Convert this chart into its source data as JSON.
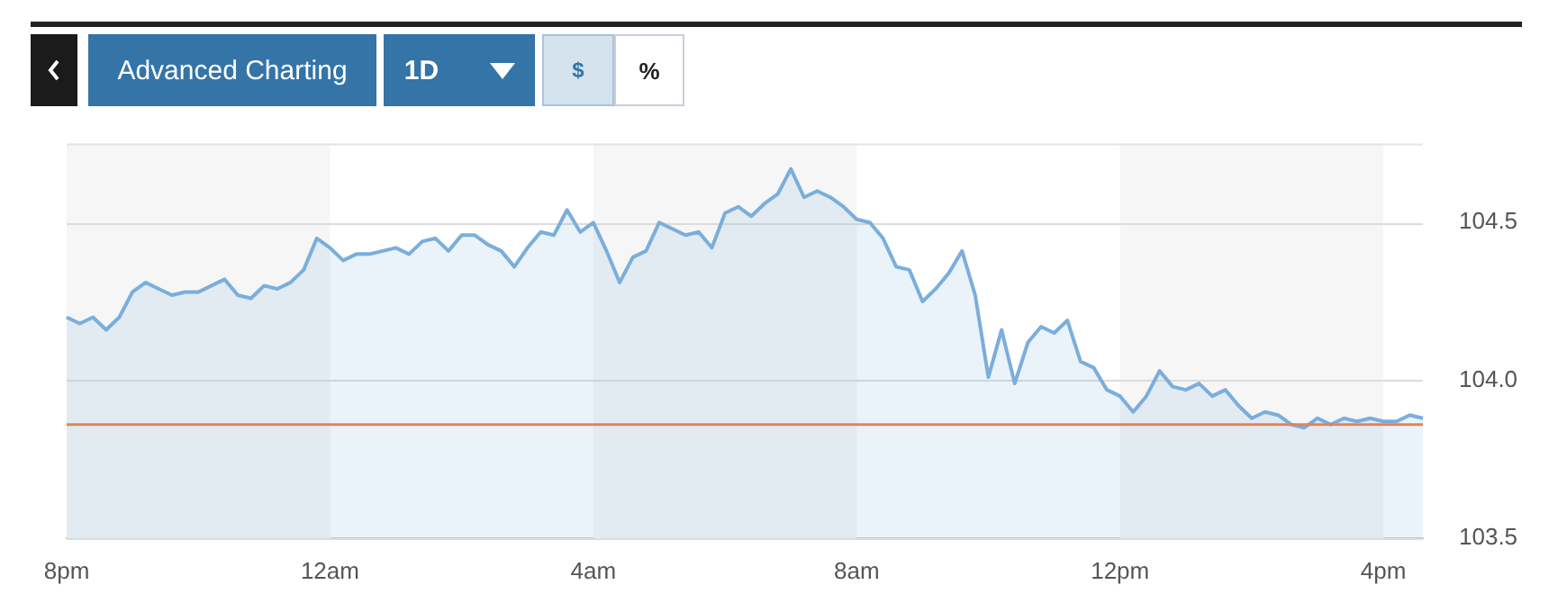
{
  "chart_data": {
    "type": "area",
    "categories": [
      "8pm",
      null,
      null,
      null,
      null,
      null,
      null,
      null,
      null,
      null,
      null,
      null,
      null,
      null,
      null,
      null,
      null,
      null,
      null,
      null,
      "12am",
      null,
      null,
      null,
      null,
      null,
      null,
      null,
      null,
      null,
      null,
      null,
      null,
      null,
      null,
      null,
      null,
      null,
      null,
      null,
      "4am",
      null,
      null,
      null,
      null,
      null,
      null,
      null,
      null,
      null,
      null,
      null,
      null,
      null,
      null,
      null,
      null,
      null,
      null,
      null,
      "8am",
      null,
      null,
      null,
      null,
      null,
      null,
      null,
      null,
      null,
      null,
      null,
      null,
      null,
      null,
      null,
      null,
      null,
      null,
      null,
      "12pm",
      null,
      null,
      null,
      null,
      null,
      null,
      null,
      null,
      null,
      null,
      null,
      null,
      null,
      null,
      null,
      null,
      null,
      null,
      null,
      "4pm",
      null,
      null,
      null
    ],
    "series": [
      {
        "color": "#7aaedc",
        "values": [
          104.2,
          104.18,
          104.2,
          104.16,
          104.2,
          104.28,
          104.31,
          104.29,
          104.27,
          104.28,
          104.28,
          104.3,
          104.32,
          104.27,
          104.26,
          104.3,
          104.29,
          104.31,
          104.35,
          104.45,
          104.42,
          104.38,
          104.4,
          104.4,
          104.41,
          104.42,
          104.4,
          104.44,
          104.45,
          104.41,
          104.46,
          104.46,
          104.43,
          104.41,
          104.36,
          104.42,
          104.47,
          104.46,
          104.54,
          104.47,
          104.5,
          104.41,
          104.31,
          104.39,
          104.41,
          104.5,
          104.48,
          104.46,
          104.47,
          104.42,
          104.53,
          104.55,
          104.52,
          104.56,
          104.59,
          104.67,
          104.58,
          104.6,
          104.58,
          104.55,
          104.51,
          104.5,
          104.45,
          104.36,
          104.35,
          104.25,
          104.29,
          104.34,
          104.41,
          104.27,
          104.01,
          104.16,
          103.99,
          104.12,
          104.17,
          104.15,
          104.19,
          104.06,
          104.04,
          103.97,
          103.95,
          103.9,
          103.95,
          104.03,
          103.98,
          103.97,
          103.99,
          103.95,
          103.97,
          103.92,
          103.88,
          103.9,
          103.89,
          103.86,
          103.85,
          103.88,
          103.86,
          103.88,
          103.87,
          103.88,
          103.87,
          103.87,
          103.89,
          103.88
        ]
      }
    ],
    "ylim": [
      103.5,
      104.75
    ],
    "yticks": [
      103.5,
      {
        "value": 104,
        "label": "104.0"
      },
      104.5
    ],
    "grid": "y",
    "marker": "none",
    "ref_lines": [
      {
        "axis": "y",
        "value": 103.86,
        "color": "#e0845a"
      }
    ],
    "bands": [
      {
        "axis": "x",
        "from": "8pm",
        "to": "12am",
        "color": "#f6f6f6"
      },
      {
        "axis": "x",
        "from": "4am",
        "to": "8am",
        "color": "#f6f6f6"
      },
      {
        "axis": "x",
        "from": "12pm",
        "to": "4pm",
        "color": "#f6f6f6"
      }
    ],
    "annotations": [
      "Advanced Charting",
      "1D",
      "$",
      "%"
    ]
  }
}
